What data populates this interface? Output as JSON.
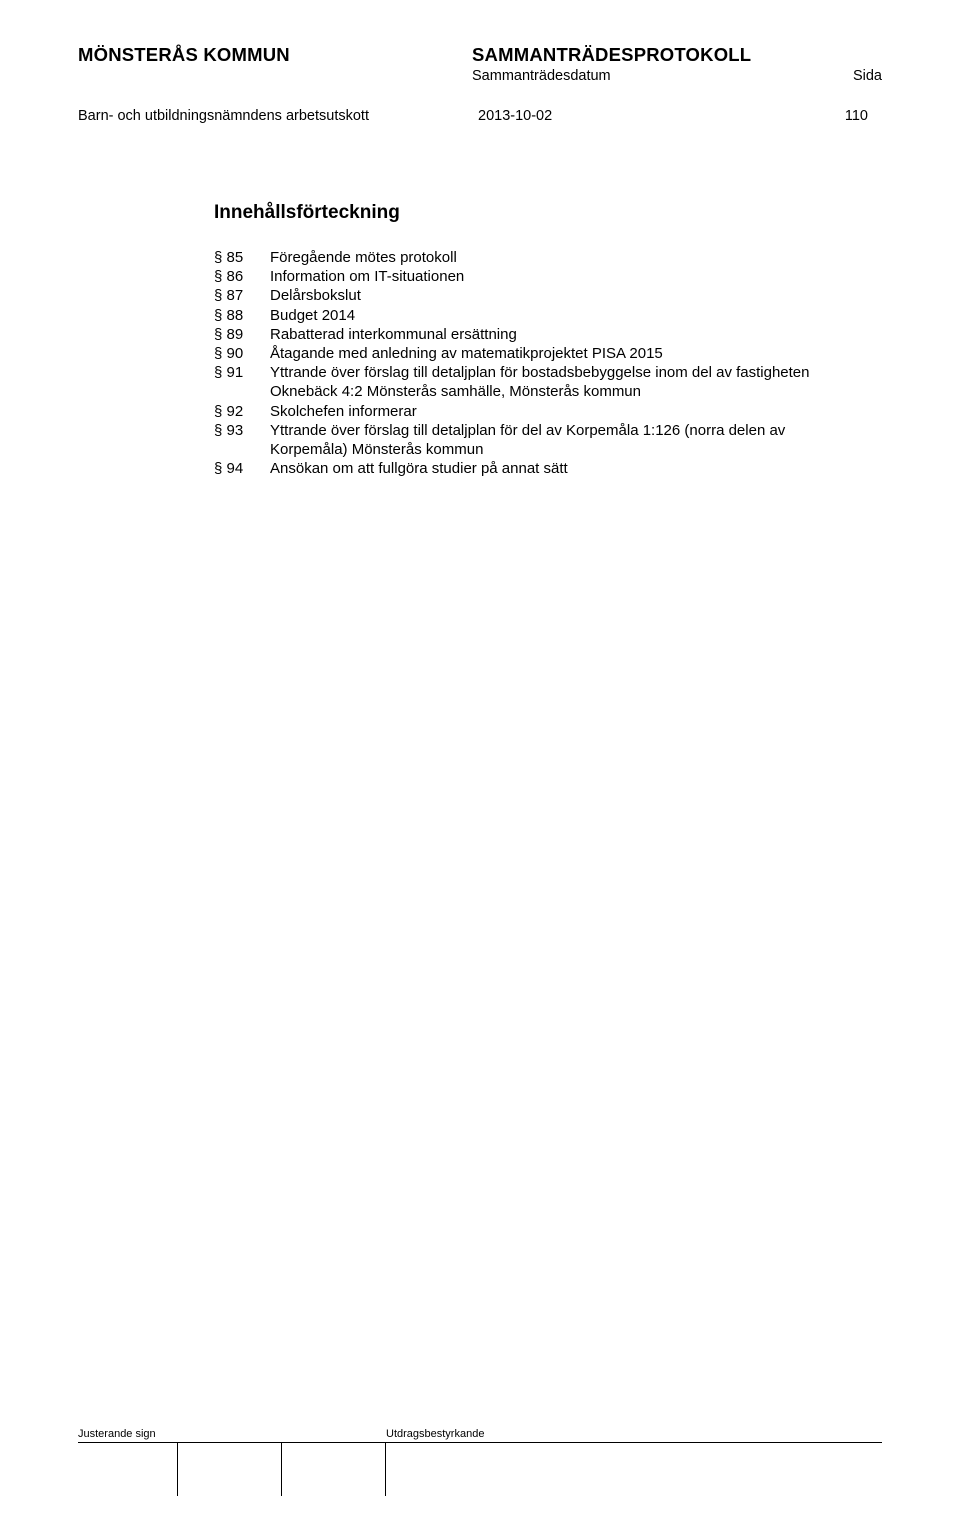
{
  "header": {
    "left": "MÖNSTERÅS KOMMUN",
    "right_title": "SAMMANTRÄDESPROTOKOLL",
    "right_sub_left": "Sammanträdesdatum",
    "right_sub_right": "Sida"
  },
  "meta": {
    "committee": "Barn- och utbildningsnämndens arbetsutskott",
    "date": "2013-10-02",
    "page": "110"
  },
  "toc": {
    "title": "Innehållsförteckning",
    "items": [
      {
        "ref": "§ 85",
        "text": "Föregående mötes protokoll"
      },
      {
        "ref": "§ 86",
        "text": "Information om IT-situationen"
      },
      {
        "ref": "§ 87",
        "text": "Delårsbokslut"
      },
      {
        "ref": "§ 88",
        "text": "Budget 2014"
      },
      {
        "ref": "§ 89",
        "text": "Rabatterad interkommunal ersättning"
      },
      {
        "ref": "§ 90",
        "text": "Åtagande med anledning av matematikprojektet PISA 2015"
      },
      {
        "ref": "§ 91",
        "text": "Yttrande över förslag till detaljplan för bostadsbebyggelse inom del av fastigheten Oknebäck 4:2 Mönsterås samhälle, Mönsterås kommun"
      },
      {
        "ref": "§ 92",
        "text": "Skolchefen informerar"
      },
      {
        "ref": "§ 93",
        "text": "Yttrande över förslag till detaljplan för del av Korpemåla 1:126 (norra delen av Korpemåla) Mönsterås kommun"
      },
      {
        "ref": "§ 94",
        "text": "Ansökan om att fullgöra studier på annat sätt"
      }
    ]
  },
  "footer": {
    "left_label": "Justerande sign",
    "right_label": "Utdragsbestyrkande"
  },
  "colors": {
    "text": "#000000",
    "background": "#ffffff",
    "border": "#000000"
  },
  "typography": {
    "heading_weight": "bold",
    "heading_size_pt": 14,
    "body_size_pt": 11,
    "footer_size_pt": 8,
    "font_family": "Verdana"
  }
}
